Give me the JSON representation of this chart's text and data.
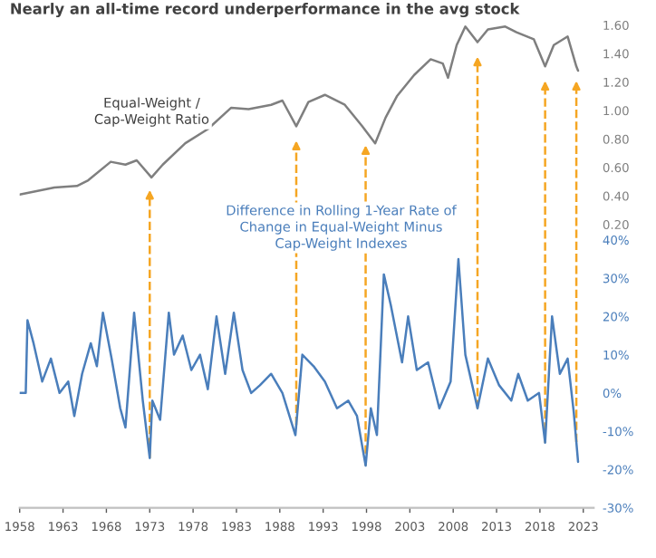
{
  "chart_data": {
    "type": "line",
    "title": "Nearly an all-time record underperformance in the avg stock",
    "annotations": [
      "Equal-Weight /\nCap-Weight Ratio",
      "Difference in Rolling 1-Year Rate of\nChange in Equal-Weight Minus\nCap-Weight Indexes"
    ],
    "series": [
      {
        "color": "#7f7f7f",
        "axis": "y",
        "x": [
          1958.0,
          1962.0,
          1964.6,
          1965.9,
          1968.5,
          1970.2,
          1971.5,
          1973.2,
          1974.5,
          1977.1,
          1979.7,
          1982.4,
          1984.4,
          1987.0,
          1988.3,
          1989.9,
          1991.3,
          1993.2,
          1995.5,
          1997.5,
          1999.0,
          2000.2,
          2001.5,
          2003.5,
          2005.4,
          2006.8,
          2007.4,
          2008.4,
          2009.4,
          2010.8,
          2012.0,
          2014.0,
          2015.3,
          2017.3,
          2018.6,
          2019.6,
          2021.2,
          2022.2,
          2022.4
        ],
        "values": [
          0.41,
          0.46,
          0.47,
          0.51,
          0.64,
          0.62,
          0.65,
          0.53,
          0.62,
          0.77,
          0.87,
          1.02,
          1.01,
          1.04,
          1.07,
          0.89,
          1.06,
          1.11,
          1.04,
          0.89,
          0.77,
          0.95,
          1.1,
          1.25,
          1.36,
          1.33,
          1.23,
          1.46,
          1.59,
          1.48,
          1.57,
          1.59,
          1.55,
          1.5,
          1.31,
          1.46,
          1.52,
          1.31,
          1.28
        ]
      },
      {
        "color": "#4a7ebb",
        "axis": "y2",
        "x": [
          1958.0,
          1958.7,
          1958.9,
          1959.6,
          1960.6,
          1961.6,
          1962.6,
          1963.6,
          1964.3,
          1965.2,
          1966.2,
          1966.9,
          1967.6,
          1968.6,
          1969.6,
          1970.2,
          1971.2,
          1972.2,
          1973.0,
          1973.3,
          1974.2,
          1975.2,
          1975.8,
          1976.8,
          1977.8,
          1978.8,
          1979.7,
          1980.7,
          1981.7,
          1982.7,
          1983.7,
          1984.7,
          1985.7,
          1987.0,
          1988.3,
          1989.8,
          1990.6,
          1991.9,
          1993.2,
          1994.6,
          1995.9,
          1996.9,
          1997.9,
          1998.5,
          1999.2,
          2000.0,
          2000.8,
          2002.1,
          2002.8,
          2003.8,
          2005.1,
          2006.4,
          2007.7,
          2008.6,
          2009.4,
          2010.8,
          2012.0,
          2013.3,
          2014.7,
          2015.5,
          2016.6,
          2017.9,
          2018.6,
          2019.4,
          2020.3,
          2021.2,
          2021.9,
          2022.4
        ],
        "values": [
          0,
          0,
          19,
          13,
          3,
          9,
          0,
          3,
          -6,
          5,
          13,
          7,
          21,
          9,
          -4,
          -9,
          21,
          -2,
          -17,
          -2,
          -7,
          21,
          10,
          15,
          6,
          10,
          1,
          20,
          5,
          21,
          6,
          0,
          2,
          5,
          0,
          -11,
          10,
          7,
          3,
          -4,
          -2,
          -6,
          -19,
          -4,
          -11,
          31,
          23,
          8,
          20,
          6,
          8,
          -4,
          3,
          35,
          10,
          -4,
          9,
          2,
          -2,
          5,
          -2,
          0,
          -13,
          20,
          5,
          9,
          -5,
          -18
        ]
      }
    ],
    "xlim": [
      1958,
      2024.2
    ],
    "xticks": [
      1958,
      1963,
      1968,
      1973,
      1978,
      1983,
      1988,
      1993,
      1998,
      2003,
      2008,
      2013,
      2018,
      2023
    ],
    "ylim": [
      -1.79,
      1.6
    ],
    "yticks": [
      {
        "value": 0.2,
        "label": "0.20"
      },
      {
        "value": 0.4,
        "label": "0.40"
      },
      {
        "value": 0.6,
        "label": "0.60"
      },
      {
        "value": 0.8,
        "label": "0.80"
      },
      {
        "value": 1.0,
        "label": "1.00"
      },
      {
        "value": 1.2,
        "label": "1.20"
      },
      {
        "value": 1.4,
        "label": "1.40"
      },
      {
        "value": 1.6,
        "label": "1.60"
      }
    ],
    "y2lim": [
      -30,
      40
    ],
    "y2ticks": [
      {
        "value": -30,
        "label": "-30%"
      },
      {
        "value": -20,
        "label": "-20%"
      },
      {
        "value": -10,
        "label": "-10%"
      },
      {
        "value": 0,
        "label": "0%"
      },
      {
        "value": 10,
        "label": "10%"
      },
      {
        "value": 20,
        "label": "20%"
      },
      {
        "value": 30,
        "label": "30%"
      },
      {
        "value": 40,
        "label": "40%"
      }
    ],
    "ref_lines": [
      {
        "axis": "x",
        "value": 1973.0,
        "color": "#f5a623",
        "line_style": "dashed"
      },
      {
        "axis": "x",
        "value": 1989.9,
        "color": "#f5a623",
        "line_style": "dashed"
      },
      {
        "axis": "x",
        "value": 1997.9,
        "color": "#f5a623",
        "line_style": "dashed"
      },
      {
        "axis": "x",
        "value": 2010.8,
        "color": "#f5a623",
        "line_style": "dashed"
      },
      {
        "axis": "x",
        "value": 2018.6,
        "color": "#f5a623",
        "line_style": "dashed"
      },
      {
        "axis": "x",
        "value": 2022.2,
        "color": "#f5a623",
        "line_style": "dashed"
      }
    ],
    "grid": false,
    "legend": false
  }
}
